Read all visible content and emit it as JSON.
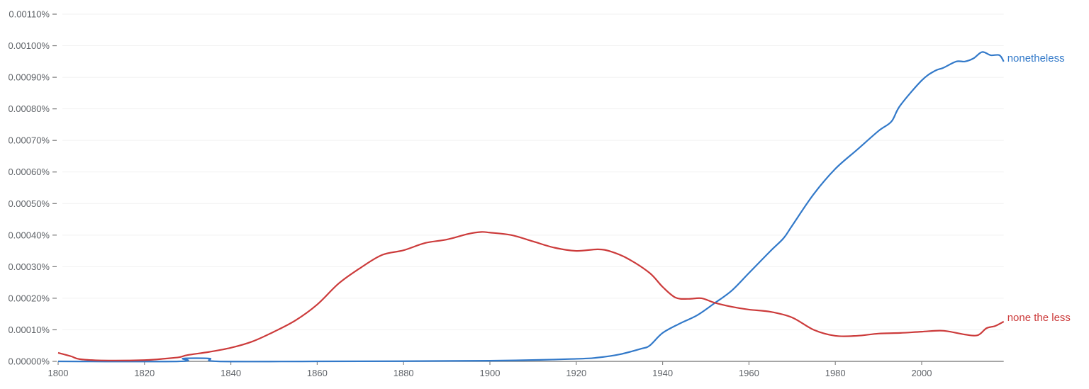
{
  "chart_data": {
    "type": "line",
    "title": "",
    "xlabel": "",
    "ylabel": "",
    "xlim": [
      1800,
      2019
    ],
    "ylim": [
      0,
      0.0011
    ],
    "grid": true,
    "legend": "inline-right",
    "x_ticks": [
      "1800",
      "1820",
      "1840",
      "1860",
      "1880",
      "1900",
      "1920",
      "1940",
      "1960",
      "1980",
      "2000"
    ],
    "y_ticks": [
      "0.00000%",
      "0.00010%",
      "0.00020%",
      "0.00030%",
      "0.00040%",
      "0.00050%",
      "0.00060%",
      "0.00070%",
      "0.00080%",
      "0.00090%",
      "0.00100%",
      "0.00110%"
    ],
    "series": [
      {
        "name": "nonetheless",
        "color": "#3279c9",
        "x": [
          1800,
          1828,
          1829,
          1835,
          1837,
          1860,
          1900,
          1920,
          1925,
          1930,
          1935,
          1937,
          1940,
          1944,
          1948,
          1952,
          1956,
          1960,
          1965,
          1968,
          1970,
          1975,
          1980,
          1985,
          1990,
          1993,
          1995,
          2000,
          2003,
          2005,
          2008,
          2010,
          2012,
          2014,
          2016,
          2018,
          2019
        ],
        "y": [
          0,
          0,
          9e-06,
          9e-06,
          0,
          0,
          2e-06,
          8e-06,
          1.2e-05,
          2.2e-05,
          4e-05,
          5e-05,
          9e-05,
          0.00012,
          0.000146,
          0.000184,
          0.000224,
          0.00028,
          0.00035,
          0.00039,
          0.00043,
          0.00053,
          0.00061,
          0.00067,
          0.00073,
          0.00076,
          0.00081,
          0.00089,
          0.00092,
          0.00093,
          0.00095,
          0.00095,
          0.00096,
          0.00098,
          0.00097,
          0.00097,
          0.00095
        ]
      },
      {
        "name": "none the less",
        "color": "#cc3b3b",
        "x": [
          1800,
          1803,
          1805,
          1810,
          1820,
          1825,
          1828,
          1830,
          1835,
          1840,
          1845,
          1850,
          1855,
          1860,
          1865,
          1870,
          1875,
          1880,
          1885,
          1890,
          1895,
          1898,
          1900,
          1905,
          1910,
          1915,
          1920,
          1925,
          1928,
          1932,
          1937,
          1940,
          1943,
          1946,
          1949,
          1952,
          1956,
          1960,
          1965,
          1970,
          1975,
          1980,
          1985,
          1990,
          1995,
          2000,
          2005,
          2010,
          2013,
          2015,
          2017,
          2019
        ],
        "y": [
          2.7e-05,
          1.6e-05,
          7e-06,
          3e-06,
          4e-06,
          9e-06,
          1.3e-05,
          2e-05,
          3e-05,
          4.3e-05,
          6.3e-05,
          9.4e-05,
          0.00013,
          0.00018,
          0.000247,
          0.000296,
          0.000337,
          0.000352,
          0.000375,
          0.000386,
          0.000404,
          0.00041,
          0.000408,
          0.0004,
          0.00038,
          0.00036,
          0.00035,
          0.000355,
          0.000348,
          0.000325,
          0.00028,
          0.000236,
          0.000202,
          0.000198,
          0.0002,
          0.000186,
          0.000173,
          0.000164,
          0.000157,
          0.000139,
          0.0001,
          8.1e-05,
          8.1e-05,
          8.8e-05,
          9e-05,
          9.4e-05,
          9.7e-05,
          8.5e-05,
          8.3e-05,
          0.000105,
          0.000112,
          0.000126
        ]
      }
    ]
  }
}
